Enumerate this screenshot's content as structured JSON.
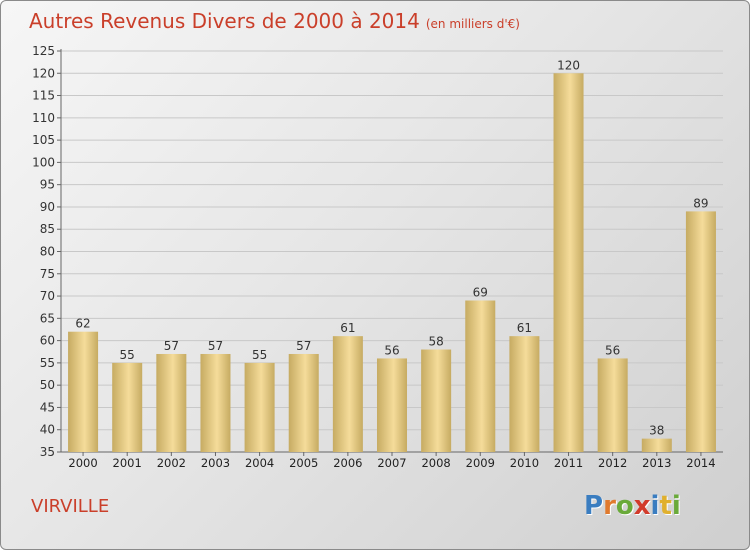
{
  "header": {
    "title": "Autres Revenus Divers de 2000 à 2014",
    "subtitle": "(en milliers d'€)"
  },
  "footer": {
    "city": "VIRVILLE",
    "brand": "Proxiti",
    "brand_letters": [
      {
        "char": "P",
        "color": "#3a7dc0"
      },
      {
        "char": "r",
        "color": "#e07a2e"
      },
      {
        "char": "o",
        "color": "#6aaa3a"
      },
      {
        "char": "x",
        "color": "#d23b2b"
      },
      {
        "char": "i",
        "color": "#3a7dc0"
      },
      {
        "char": "t",
        "color": "#e0b02e"
      },
      {
        "char": "i",
        "color": "#6aaa3a"
      }
    ]
  },
  "colors": {
    "title": "#ca3f2a",
    "bar_light": "#f5dc9a",
    "bar_dark": "#c6ab62",
    "grid": "#c8c8c8"
  },
  "chart_data": {
    "type": "bar",
    "title": "Autres Revenus Divers de 2000 à 2014",
    "subtitle": "(en milliers d'€)",
    "categories": [
      "2000",
      "2001",
      "2002",
      "2003",
      "2004",
      "2005",
      "2006",
      "2007",
      "2008",
      "2009",
      "2010",
      "2011",
      "2012",
      "2013",
      "2014"
    ],
    "values": [
      62,
      55,
      57,
      57,
      55,
      57,
      61,
      56,
      58,
      69,
      61,
      120,
      56,
      38,
      89
    ],
    "ylim": [
      35,
      125
    ],
    "yticks": [
      35,
      40,
      45,
      50,
      55,
      60,
      65,
      70,
      75,
      80,
      85,
      90,
      95,
      100,
      105,
      110,
      115,
      120,
      125
    ],
    "grid": true,
    "data_labels": true
  }
}
